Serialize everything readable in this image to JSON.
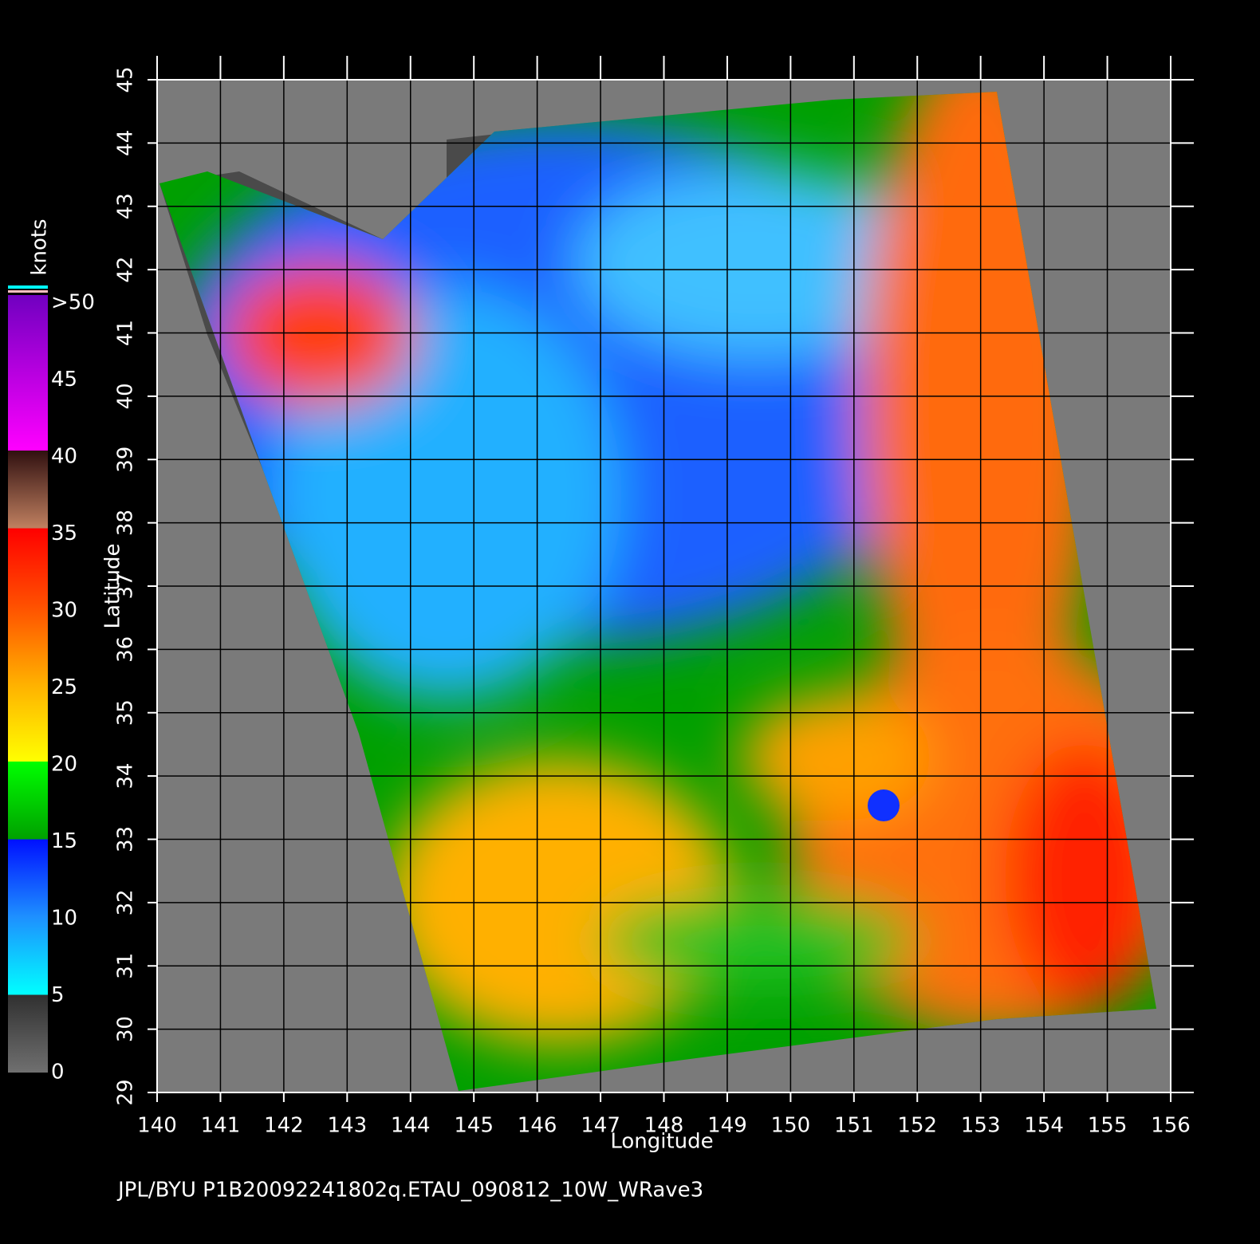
{
  "map": {
    "xlabel": "Longitude",
    "ylabel": "Latitude",
    "xticks": [
      140,
      141,
      142,
      143,
      144,
      145,
      146,
      147,
      148,
      149,
      150,
      151,
      152,
      153,
      154,
      155,
      156
    ],
    "yticks": [
      29,
      30,
      31,
      32,
      33,
      34,
      35,
      36,
      37,
      38,
      39,
      40,
      41,
      42,
      43,
      44,
      45
    ],
    "xlim": [
      140,
      156
    ],
    "ylim": [
      29,
      45
    ]
  },
  "colorbar": {
    "title": "knots",
    "labels": [
      {
        "value": 0,
        "label": "0"
      },
      {
        "value": 5,
        "label": "5"
      },
      {
        "value": 10,
        "label": "10"
      },
      {
        "value": 15,
        "label": "15"
      },
      {
        "value": 20,
        "label": "20"
      },
      {
        "value": 25,
        "label": "25"
      },
      {
        "value": 30,
        "label": "30"
      },
      {
        "value": 35,
        "label": "35"
      },
      {
        "value": 40,
        "label": "40"
      },
      {
        "value": 45,
        "label": "45"
      },
      {
        "value": 50,
        "label": ">50"
      }
    ],
    "lim": [
      0,
      50
    ]
  },
  "footer": "JPL/BYU  P1B20092241802q.ETAU_090812_10W_WRave3"
}
